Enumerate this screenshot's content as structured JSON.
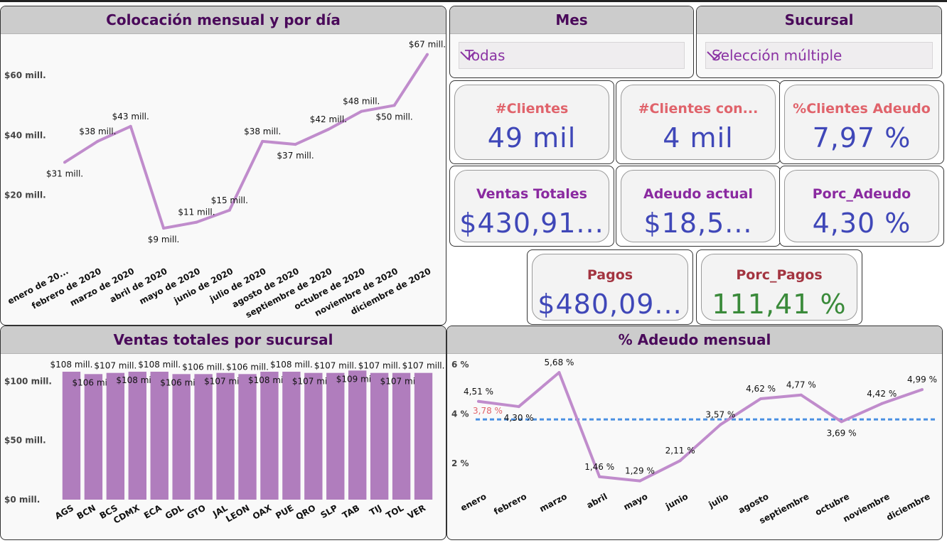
{
  "colors": {
    "header_text": "#4a0a5a",
    "line": "#c08ccc",
    "bar": "#b07dbd",
    "kpi_value_blue": "#3f47b8",
    "kpi_value_green": "#3a8a3a",
    "kpi_label_red": "#e0636b",
    "kpi_label_purple": "#8a2aa0",
    "kpi_label_darkred": "#a33440",
    "avg_line": "#4a90e2"
  },
  "line_chart": {
    "title": "Colocación mensual y por día",
    "chart_data": {
      "type": "line",
      "x": [
        "enero de 20...",
        "febrero de 2020",
        "marzo de 2020",
        "abril de 2020",
        "mayo de 2020",
        "junio de 2020",
        "julio de 2020",
        "agosto de 2020",
        "septiembre de 2020",
        "octubre de 2020",
        "noviembre de 2020",
        "diciembre de 2020"
      ],
      "values": [
        31,
        38,
        43,
        9,
        11,
        15,
        38,
        37,
        42,
        48,
        50,
        67
      ],
      "data_labels": [
        "$31 mill.",
        "$38 mill.",
        "$43 mill.",
        "$9 mill.",
        "$11 mill.",
        "$15 mill.",
        "$38 mill.",
        "$37 mill.",
        "$42 mill.",
        "$48 mill.",
        "$50 mill.",
        "$67 mill."
      ],
      "ylim": [
        0,
        70
      ],
      "yticks": [
        20,
        40,
        60
      ],
      "ytick_labels": [
        "$20 mill.",
        "$40 mill.",
        "$60 mill."
      ],
      "grid": false
    }
  },
  "filters": {
    "mes": {
      "title": "Mes",
      "value": "Todas",
      "icon": "chevron-down-icon"
    },
    "sucursal": {
      "title": "Sucursal",
      "value": "Selección múltiple",
      "icon": "chevron-down-icon"
    }
  },
  "kpis": [
    {
      "label": "#Clientes",
      "value": "49 mil",
      "label_color": "#e0636b",
      "value_color": "#3f47b8"
    },
    {
      "label": "#Clientes con...",
      "value": "4 mil",
      "label_color": "#e0636b",
      "value_color": "#3f47b8"
    },
    {
      "label": "%Clientes Adeudo",
      "value": "7,97 %",
      "label_color": "#e0636b",
      "value_color": "#3f47b8"
    },
    {
      "label": "Ventas Totales",
      "value": "$430,91...",
      "label_color": "#8a2aa0",
      "value_color": "#3f47b8"
    },
    {
      "label": "Adeudo actual",
      "value": "$18,5...",
      "label_color": "#8a2aa0",
      "value_color": "#3f47b8"
    },
    {
      "label": "Porc_Adeudo",
      "value": "4,30 %",
      "label_color": "#8a2aa0",
      "value_color": "#3f47b8"
    },
    {
      "label": "Pagos",
      "value": "$480,09...",
      "label_color": "#a33440",
      "value_color": "#3f47b8"
    },
    {
      "label": "Porc_Pagos",
      "value": "111,41 %",
      "label_color": "#a33440",
      "value_color": "#3a8a3a"
    }
  ],
  "bar_chart": {
    "title": "Ventas totales por sucursal",
    "chart_data": {
      "type": "bar",
      "categories": [
        "AGS",
        "BCN",
        "BCS",
        "CDMX",
        "ECA",
        "GDL",
        "GTO",
        "JAL",
        "LEON",
        "OAX",
        "PUE",
        "QRO",
        "SLP",
        "TAB",
        "TIJ",
        "TOL",
        "VER"
      ],
      "values": [
        108,
        106,
        107,
        108,
        108,
        106,
        106,
        107,
        106,
        108,
        108,
        107,
        107,
        109,
        107,
        107,
        107
      ],
      "data_labels": [
        "$108 mill.",
        "$106 mill.",
        "$107 mill.",
        "$108 mill.",
        "$108 mill.",
        "$106 mill.",
        "$106 mill.",
        "$107 mill.",
        "$106 mill.",
        "$108 mill.",
        "$108 mill.",
        "$107 mill.",
        "$107 mill.",
        "$109 mill.",
        "$107 mill.",
        "$107 mill.",
        "$107 mill."
      ],
      "ylim": [
        0,
        120
      ],
      "yticks": [
        0,
        50,
        100
      ],
      "ytick_labels": [
        "$0 mill.",
        "$50 mill.",
        "$100 mill."
      ],
      "grid": false
    }
  },
  "adeudo_chart": {
    "title": "% Adeudo mensual",
    "chart_data": {
      "type": "line",
      "x": [
        "enero",
        "febrero",
        "marzo",
        "abril",
        "mayo",
        "junio",
        "julio",
        "agosto",
        "septiembre",
        "octubre",
        "noviembre",
        "diciembre"
      ],
      "values": [
        4.51,
        4.3,
        5.68,
        1.46,
        1.29,
        2.11,
        3.57,
        4.62,
        4.77,
        3.69,
        4.42,
        4.99
      ],
      "data_labels": [
        "4,51 %",
        "4,30 %",
        "5,68 %",
        "1,46 %",
        "1,29 %",
        "2,11 %",
        "3,57 %",
        "4,62 %",
        "4,77 %",
        "3,69 %",
        "4,42 %",
        "4,99 %"
      ],
      "reference_line": {
        "value": 3.78,
        "label": "3,78 %",
        "color": "#4a90e2",
        "label_color": "#e0636b"
      },
      "ylim": [
        1,
        6
      ],
      "yticks": [
        2,
        4,
        6
      ],
      "ytick_labels": [
        "2 %",
        "4 %",
        "6 %"
      ],
      "grid": false
    }
  }
}
